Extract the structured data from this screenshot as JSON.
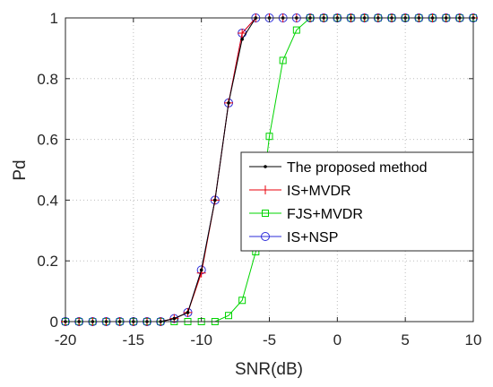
{
  "chart_data": {
    "type": "line",
    "title": "",
    "xlabel": "SNR(dB)",
    "ylabel": "Pd",
    "xlim": [
      -20,
      10
    ],
    "ylim": [
      0,
      1
    ],
    "grid": true,
    "legend_position": "right",
    "x_ticks": [
      -20,
      -15,
      -10,
      -5,
      0,
      5,
      10
    ],
    "y_ticks": [
      0,
      0.2,
      0.4,
      0.6,
      0.8,
      1
    ],
    "x_tick_labels": [
      "-20",
      "-15",
      "-10",
      "-5",
      "0",
      "5",
      "10"
    ],
    "y_tick_labels": [
      "0",
      "0.2",
      "0.4",
      "0.6",
      "0.8",
      "1"
    ],
    "series": [
      {
        "name": "The proposed method",
        "color": "#000000",
        "marker": "dot",
        "x": [
          -20,
          -19,
          -18,
          -17,
          -16,
          -15,
          -14,
          -13,
          -12,
          -11,
          -10,
          -9,
          -8,
          -7,
          -6,
          -5,
          -4,
          -3,
          -2,
          -1,
          0,
          1,
          2,
          3,
          4,
          5,
          6,
          7,
          8,
          9,
          10
        ],
        "y": [
          0,
          0,
          0,
          0,
          0,
          0,
          0,
          0,
          0.01,
          0.03,
          0.17,
          0.4,
          0.72,
          0.93,
          1,
          1,
          1,
          1,
          1,
          1,
          1,
          1,
          1,
          1,
          1,
          1,
          1,
          1,
          1,
          1,
          1
        ]
      },
      {
        "name": "IS+MVDR",
        "color": "#e8000b",
        "marker": "plus",
        "x": [
          -20,
          -19,
          -18,
          -17,
          -16,
          -15,
          -14,
          -13,
          -12,
          -11,
          -10,
          -9,
          -8,
          -7,
          -6,
          -5,
          -4,
          -3,
          -2,
          -1,
          0,
          1,
          2,
          3,
          4,
          5,
          6,
          7,
          8,
          9,
          10
        ],
        "y": [
          0,
          0,
          0,
          0,
          0,
          0,
          0,
          0,
          0.01,
          0.03,
          0.16,
          0.4,
          0.72,
          0.95,
          1,
          1,
          1,
          1,
          1,
          1,
          1,
          1,
          1,
          1,
          1,
          1,
          1,
          1,
          1,
          1,
          1
        ]
      },
      {
        "name": "FJS+MVDR",
        "color": "#00d400",
        "marker": "square",
        "x": [
          -20,
          -19,
          -18,
          -17,
          -16,
          -15,
          -14,
          -13,
          -12,
          -11,
          -10,
          -9,
          -8,
          -7,
          -6,
          -5,
          -4,
          -3,
          -2,
          -1,
          0,
          1,
          2,
          3,
          4,
          5,
          6,
          7,
          8,
          9,
          10
        ],
        "y": [
          0,
          0,
          0,
          0,
          0,
          0,
          0,
          0,
          0,
          0,
          0,
          0,
          0.02,
          0.07,
          0.23,
          0.61,
          0.86,
          0.96,
          1,
          1,
          1,
          1,
          1,
          1,
          1,
          1,
          1,
          1,
          1,
          1,
          1
        ]
      },
      {
        "name": "IS+NSP",
        "color": "#2b2bd9",
        "marker": "circle",
        "x": [
          -20,
          -19,
          -18,
          -17,
          -16,
          -15,
          -14,
          -13,
          -12,
          -11,
          -10,
          -9,
          -8,
          -7,
          -6,
          -5,
          -4,
          -3,
          -2,
          -1,
          0,
          1,
          2,
          3,
          4,
          5,
          6,
          7,
          8,
          9,
          10
        ],
        "y": [
          0,
          0,
          0,
          0,
          0,
          0,
          0,
          0,
          0.01,
          0.03,
          0.17,
          0.4,
          0.72,
          0.95,
          1,
          1,
          1,
          1,
          1,
          1,
          1,
          1,
          1,
          1,
          1,
          1,
          1,
          1,
          1,
          1,
          1
        ]
      }
    ]
  }
}
